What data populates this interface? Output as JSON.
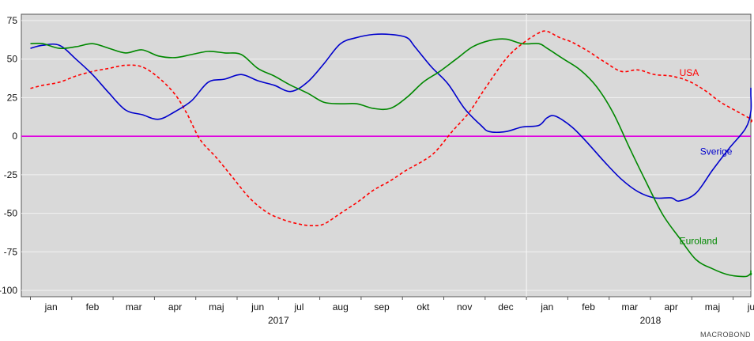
{
  "chart_data": {
    "type": "line",
    "title": "",
    "xlabel": "",
    "ylabel": "",
    "ylim": [
      -100,
      75
    ],
    "yticks": [
      75,
      50,
      25,
      0,
      -25,
      -50,
      -75,
      -100
    ],
    "grid": true,
    "background": "#d9d9d9",
    "month_ticks": [
      {
        "label": "jan",
        "month": 0
      },
      {
        "label": "feb",
        "month": 1
      },
      {
        "label": "mar",
        "month": 2
      },
      {
        "label": "apr",
        "month": 3
      },
      {
        "label": "maj",
        "month": 4
      },
      {
        "label": "jun",
        "month": 5
      },
      {
        "label": "jul",
        "month": 6
      },
      {
        "label": "aug",
        "month": 7
      },
      {
        "label": "sep",
        "month": 8
      },
      {
        "label": "okt",
        "month": 9
      },
      {
        "label": "nov",
        "month": 10
      },
      {
        "label": "dec",
        "month": 11
      },
      {
        "label": "jan",
        "month": 12
      },
      {
        "label": "feb",
        "month": 13
      },
      {
        "label": "mar",
        "month": 14
      },
      {
        "label": "apr",
        "month": 15
      },
      {
        "label": "maj",
        "month": 16
      },
      {
        "label": "jun",
        "month": 17
      }
    ],
    "year_labels": [
      {
        "label": "2017",
        "month": 5.5
      },
      {
        "label": "2018",
        "month": 14.5
      }
    ],
    "year_divider_month": 11.5,
    "zero_line_color": "#e000e0",
    "series": [
      {
        "name": "USA",
        "color": "#ff0000",
        "dashed": true,
        "label_at": {
          "month": 15.2,
          "value": 39
        },
        "points": [
          [
            -0.5,
            31
          ],
          [
            -0.2,
            33
          ],
          [
            0.2,
            35
          ],
          [
            0.6,
            39
          ],
          [
            1.0,
            42
          ],
          [
            1.4,
            44
          ],
          [
            1.8,
            46
          ],
          [
            2.2,
            45
          ],
          [
            2.6,
            38
          ],
          [
            3.0,
            27
          ],
          [
            3.3,
            14
          ],
          [
            3.6,
            -2
          ],
          [
            4.0,
            -14
          ],
          [
            4.4,
            -27
          ],
          [
            4.8,
            -40
          ],
          [
            5.2,
            -49
          ],
          [
            5.6,
            -54
          ],
          [
            6.0,
            -57
          ],
          [
            6.3,
            -58
          ],
          [
            6.6,
            -57
          ],
          [
            7.0,
            -50
          ],
          [
            7.4,
            -43
          ],
          [
            7.8,
            -35
          ],
          [
            8.2,
            -29
          ],
          [
            8.6,
            -22
          ],
          [
            9.0,
            -16
          ],
          [
            9.3,
            -10
          ],
          [
            9.7,
            3
          ],
          [
            10.1,
            15
          ],
          [
            10.5,
            31
          ],
          [
            11.0,
            50
          ],
          [
            11.4,
            60
          ],
          [
            11.8,
            67
          ],
          [
            12.0,
            68
          ],
          [
            12.3,
            64
          ],
          [
            12.6,
            61
          ],
          [
            13.0,
            55
          ],
          [
            13.4,
            48
          ],
          [
            13.8,
            42
          ],
          [
            14.2,
            43
          ],
          [
            14.6,
            40
          ],
          [
            15.0,
            39
          ],
          [
            15.4,
            36
          ],
          [
            15.8,
            30
          ],
          [
            16.2,
            22
          ],
          [
            16.6,
            16
          ],
          [
            17.0,
            11
          ],
          [
            17.5,
            9
          ],
          [
            18.0,
            9
          ]
        ]
      },
      {
        "name": "Sverige",
        "color": "#0000cc",
        "dashed": false,
        "label_at": {
          "month": 15.7,
          "value": -12
        },
        "points": [
          [
            -0.5,
            57
          ],
          [
            -0.2,
            59
          ],
          [
            0.2,
            59
          ],
          [
            0.6,
            50
          ],
          [
            1.0,
            40
          ],
          [
            1.4,
            28
          ],
          [
            1.8,
            17
          ],
          [
            2.2,
            14
          ],
          [
            2.6,
            11
          ],
          [
            3.0,
            16
          ],
          [
            3.4,
            23
          ],
          [
            3.8,
            35
          ],
          [
            4.2,
            37
          ],
          [
            4.6,
            40
          ],
          [
            5.0,
            36
          ],
          [
            5.4,
            33
          ],
          [
            5.8,
            29
          ],
          [
            6.2,
            35
          ],
          [
            6.6,
            47
          ],
          [
            7.0,
            60
          ],
          [
            7.4,
            64
          ],
          [
            7.8,
            66
          ],
          [
            8.2,
            66
          ],
          [
            8.6,
            64
          ],
          [
            8.8,
            58
          ],
          [
            9.2,
            45
          ],
          [
            9.6,
            34
          ],
          [
            10.0,
            18
          ],
          [
            10.4,
            7
          ],
          [
            10.6,
            3
          ],
          [
            11.0,
            3
          ],
          [
            11.4,
            6
          ],
          [
            11.8,
            7
          ],
          [
            12.0,
            12
          ],
          [
            12.2,
            13
          ],
          [
            12.6,
            6
          ],
          [
            13.0,
            -5
          ],
          [
            13.4,
            -17
          ],
          [
            13.8,
            -28
          ],
          [
            14.2,
            -36
          ],
          [
            14.6,
            -40
          ],
          [
            15.0,
            -40
          ],
          [
            15.2,
            -42
          ],
          [
            15.6,
            -37
          ],
          [
            16.0,
            -22
          ],
          [
            16.4,
            -8
          ],
          [
            16.8,
            5
          ],
          [
            17.2,
            16
          ],
          [
            17.6,
            27
          ],
          [
            18.0,
            29
          ],
          [
            18.5,
            31
          ],
          [
            19.0,
            31
          ]
        ]
      },
      {
        "name": "Euroland",
        "color": "#008800",
        "dashed": false,
        "label_at": {
          "month": 15.2,
          "value": -70
        },
        "points": [
          [
            -0.5,
            60
          ],
          [
            -0.2,
            60
          ],
          [
            0.2,
            57
          ],
          [
            0.6,
            58
          ],
          [
            1.0,
            60
          ],
          [
            1.4,
            57
          ],
          [
            1.8,
            54
          ],
          [
            2.2,
            56
          ],
          [
            2.6,
            52
          ],
          [
            3.0,
            51
          ],
          [
            3.4,
            53
          ],
          [
            3.8,
            55
          ],
          [
            4.2,
            54
          ],
          [
            4.6,
            53
          ],
          [
            5.0,
            44
          ],
          [
            5.4,
            39
          ],
          [
            5.8,
            33
          ],
          [
            6.2,
            28
          ],
          [
            6.6,
            22
          ],
          [
            7.0,
            21
          ],
          [
            7.4,
            21
          ],
          [
            7.8,
            18
          ],
          [
            8.2,
            18
          ],
          [
            8.6,
            25
          ],
          [
            9.0,
            35
          ],
          [
            9.4,
            42
          ],
          [
            9.8,
            50
          ],
          [
            10.2,
            58
          ],
          [
            10.6,
            62
          ],
          [
            11.0,
            63
          ],
          [
            11.4,
            60
          ],
          [
            11.8,
            60
          ],
          [
            12.0,
            57
          ],
          [
            12.4,
            50
          ],
          [
            12.8,
            43
          ],
          [
            13.2,
            32
          ],
          [
            13.6,
            15
          ],
          [
            14.0,
            -8
          ],
          [
            14.4,
            -30
          ],
          [
            14.8,
            -51
          ],
          [
            15.2,
            -66
          ],
          [
            15.6,
            -80
          ],
          [
            16.0,
            -86
          ],
          [
            16.4,
            -90
          ],
          [
            16.8,
            -91
          ],
          [
            17.2,
            -89
          ],
          [
            17.6,
            -90
          ],
          [
            18.0,
            -88
          ],
          [
            18.5,
            -88
          ],
          [
            19.0,
            -87
          ]
        ]
      }
    ]
  },
  "watermark": "MACROBOND"
}
